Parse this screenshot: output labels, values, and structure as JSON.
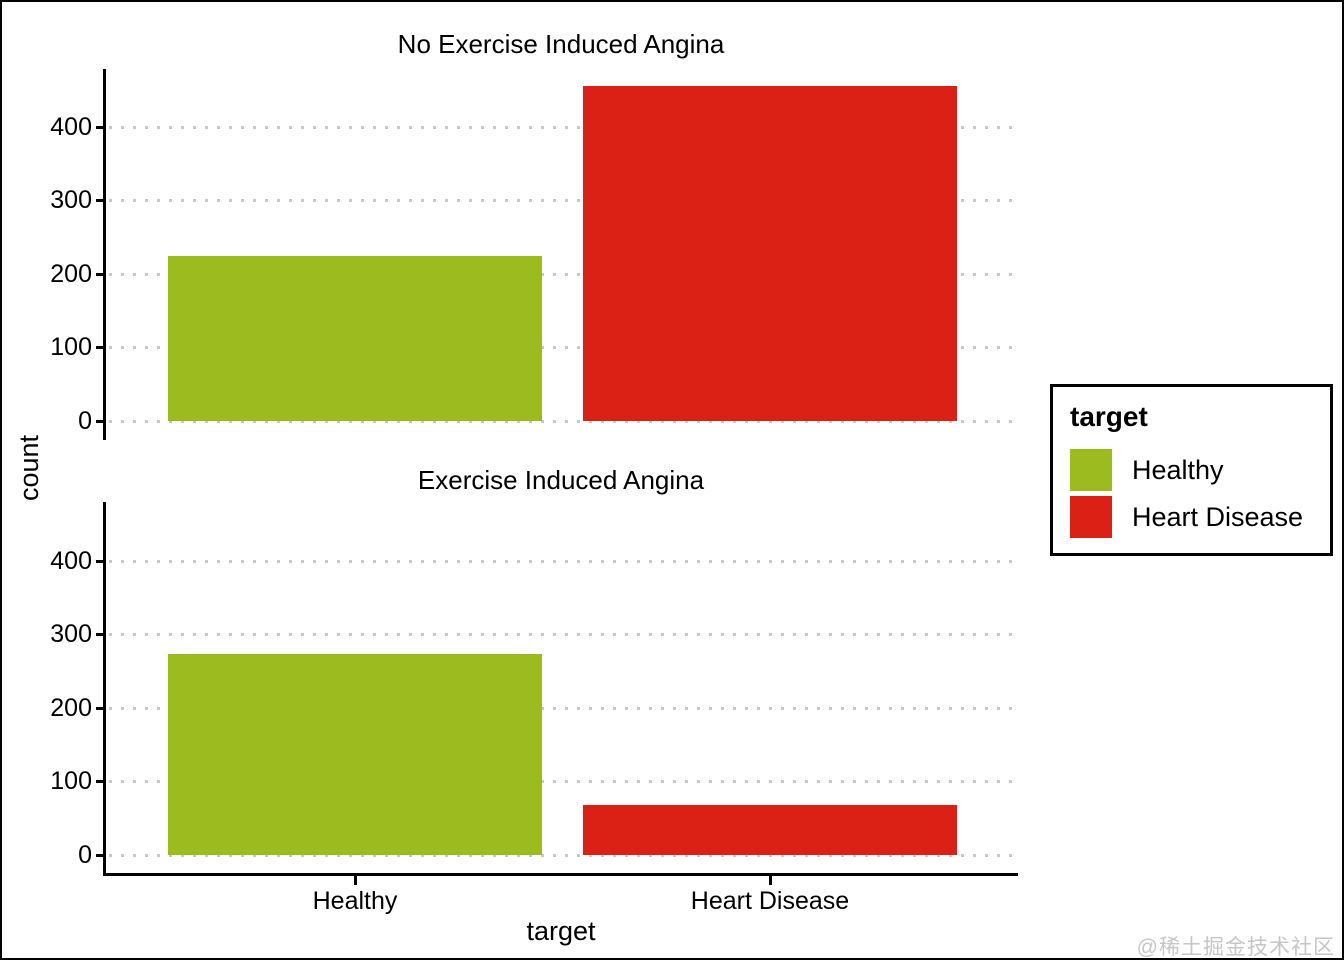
{
  "watermark": "@稀土掘金技术社区",
  "chart_data": {
    "type": "bar",
    "title": "",
    "xlabel": "target",
    "ylabel": "count",
    "categories": [
      "Healthy",
      "Heart Disease"
    ],
    "category_colors": [
      "#9CBB1E",
      "#DB2115"
    ],
    "yticks": [
      0,
      100,
      200,
      300,
      400
    ],
    "ylim": [
      0,
      480
    ],
    "grid": "horizontal dotted gridlines",
    "gridline_color": "#c8c8c8",
    "legend_position": "right",
    "facets": [
      {
        "title": "No Exercise Induced Angina",
        "values": [
          225,
          456
        ]
      },
      {
        "title": "Exercise Induced Angina",
        "values": [
          273,
          68
        ]
      }
    ],
    "legend": {
      "title": "target",
      "entries": [
        {
          "label": "Healthy",
          "color": "#9CBB1E"
        },
        {
          "label": "Heart Disease",
          "color": "#DB2115"
        }
      ]
    }
  }
}
